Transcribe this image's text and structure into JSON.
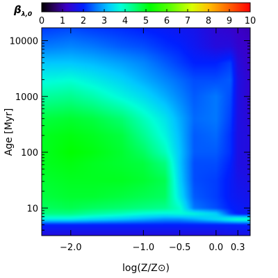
{
  "chart_data": {
    "type": "heatmap",
    "title": "",
    "xlabel": "log(Z/Z⊙)",
    "ylabel": "Age [Myr]",
    "colorbar_label": {
      "symbol": "β",
      "subscript": "λ,0"
    },
    "x_scale": "linear",
    "y_scale": "log",
    "xlim": [
      -2.4,
      0.47
    ],
    "ylim": [
      3.2,
      17000
    ],
    "x_ticks": [
      -2.0,
      -1.0,
      -0.5,
      0.0,
      0.3
    ],
    "x_tick_labels": [
      "−2.0",
      "−1.0",
      "−0.5",
      "0.0",
      "0.3"
    ],
    "y_ticks": [
      10,
      100,
      1000,
      10000
    ],
    "y_tick_labels": [
      "10",
      "100",
      "1000",
      "10000"
    ],
    "colorbar_range": [
      0,
      10
    ],
    "colorbar_ticks": [
      0,
      1,
      2,
      3,
      4,
      5,
      6,
      7,
      8,
      9,
      10
    ],
    "colorbar_tick_labels": [
      "0",
      "1",
      "2",
      "3",
      "4",
      "5",
      "6",
      "7",
      "8",
      "9",
      "10"
    ],
    "colormap_stops": [
      {
        "value": 0.0,
        "color": "#000000"
      },
      {
        "value": 0.6,
        "color": "#2a0060"
      },
      {
        "value": 1.2,
        "color": "#3a00c8"
      },
      {
        "value": 2.0,
        "color": "#0020ff"
      },
      {
        "value": 2.6,
        "color": "#0078ff"
      },
      {
        "value": 3.2,
        "color": "#00c8ff"
      },
      {
        "value": 3.8,
        "color": "#00ffd8"
      },
      {
        "value": 4.4,
        "color": "#00ff80"
      },
      {
        "value": 5.2,
        "color": "#00ff00"
      },
      {
        "value": 6.2,
        "color": "#60ff00"
      },
      {
        "value": 7.2,
        "color": "#d8ff00"
      },
      {
        "value": 8.0,
        "color": "#ffc000"
      },
      {
        "value": 9.0,
        "color": "#ff6000"
      },
      {
        "value": 10.0,
        "color": "#ff0000"
      }
    ],
    "metallicity_grid": [
      -2.4,
      -2.0,
      -1.7,
      -1.3,
      -1.0,
      -0.7,
      -0.5,
      -0.3,
      0.0,
      0.2,
      0.3,
      0.47
    ],
    "log_age_grid": [
      0.5,
      0.7,
      0.8,
      0.9,
      1.0,
      1.2,
      1.5,
      1.8,
      2.0,
      2.3,
      2.6,
      3.0,
      3.3,
      3.6,
      3.9,
      4.2
    ],
    "values": [
      [
        1.5,
        1.5,
        1.5,
        1.5,
        1.5,
        1.5,
        1.5,
        1.5,
        1.5,
        1.6,
        1.6,
        1.6
      ],
      [
        2.0,
        2.0,
        2.0,
        2.0,
        2.0,
        2.0,
        2.0,
        2.0,
        2.0,
        2.0,
        2.0,
        2.0
      ],
      [
        3.6,
        3.6,
        3.4,
        3.2,
        3.0,
        2.8,
        2.8,
        3.0,
        3.4,
        3.8,
        4.0,
        4.0
      ],
      [
        4.4,
        4.4,
        4.2,
        4.0,
        3.8,
        3.7,
        3.8,
        3.7,
        3.3,
        2.2,
        1.9,
        1.8
      ],
      [
        4.6,
        4.7,
        4.6,
        4.5,
        4.4,
        4.3,
        3.9,
        2.6,
        2.3,
        2.0,
        1.9,
        1.8
      ],
      [
        4.8,
        4.9,
        4.9,
        4.8,
        4.7,
        4.6,
        3.5,
        2.4,
        2.2,
        1.9,
        1.8,
        1.7
      ],
      [
        4.9,
        5.0,
        5.0,
        5.0,
        4.9,
        4.7,
        3.3,
        2.3,
        2.2,
        1.9,
        1.7,
        1.6
      ],
      [
        5.0,
        5.1,
        5.0,
        4.9,
        4.8,
        4.4,
        3.2,
        2.3,
        2.3,
        2.0,
        1.6,
        1.5
      ],
      [
        5.0,
        5.2,
        5.1,
        4.9,
        4.6,
        4.0,
        3.2,
        2.4,
        2.4,
        2.1,
        1.6,
        1.5
      ],
      [
        5.0,
        5.1,
        5.0,
        4.8,
        4.3,
        3.7,
        3.1,
        2.4,
        2.5,
        2.1,
        1.6,
        1.5
      ],
      [
        4.8,
        4.9,
        4.8,
        4.5,
        4.0,
        3.5,
        3.0,
        2.5,
        2.6,
        2.2,
        1.6,
        1.4
      ],
      [
        4.2,
        4.3,
        4.1,
        3.7,
        3.4,
        3.0,
        2.7,
        2.4,
        2.6,
        2.3,
        1.6,
        1.3
      ],
      [
        3.7,
        3.8,
        3.6,
        3.3,
        3.0,
        2.7,
        2.5,
        2.3,
        2.3,
        2.4,
        1.6,
        1.3
      ],
      [
        3.2,
        3.2,
        3.1,
        2.9,
        2.7,
        2.4,
        2.2,
        2.0,
        2.0,
        2.2,
        1.5,
        1.2
      ],
      [
        2.6,
        2.7,
        2.6,
        2.4,
        2.3,
        2.1,
        2.0,
        1.8,
        1.5,
        1.5,
        1.3,
        1.2
      ],
      [
        2.2,
        2.3,
        2.2,
        2.1,
        2.0,
        1.9,
        1.8,
        1.7,
        1.4,
        1.3,
        1.2,
        1.1
      ]
    ]
  }
}
